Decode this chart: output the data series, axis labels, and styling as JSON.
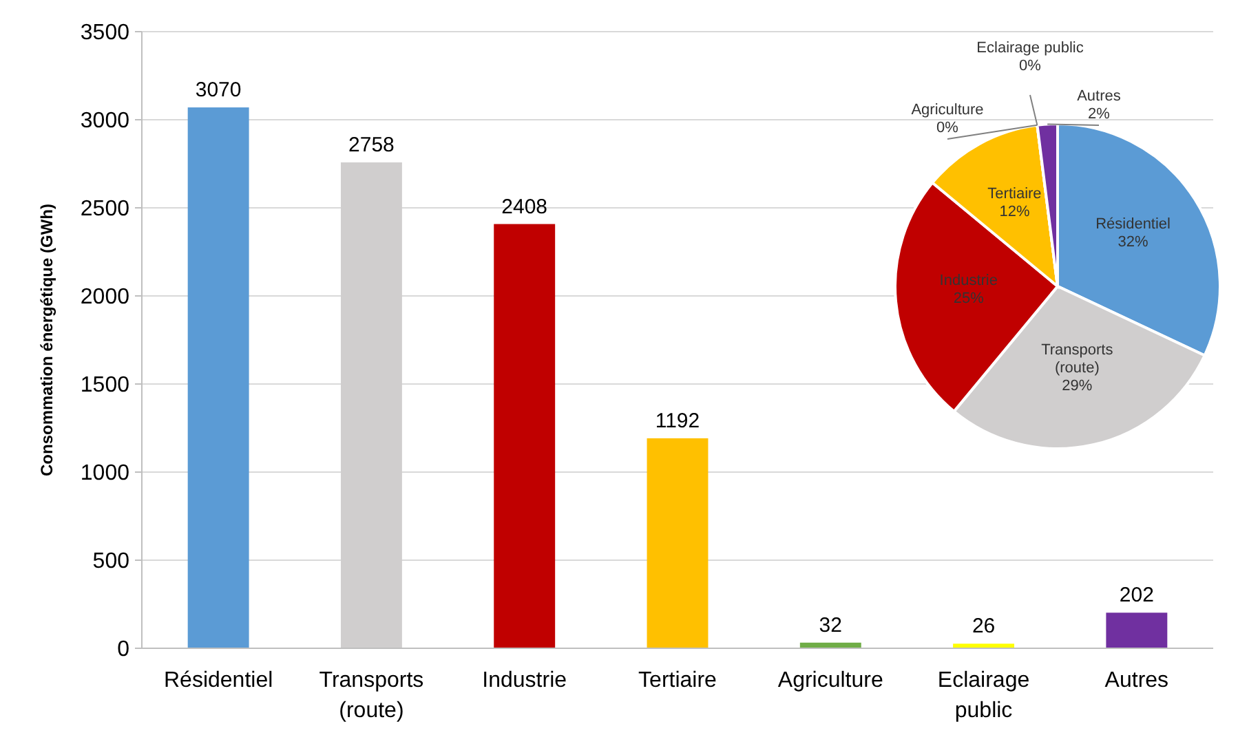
{
  "chart_data": [
    {
      "type": "bar",
      "ylabel": "Consommation énergétique (GWh)",
      "categories": [
        "Résidentiel",
        "Transports (route)",
        "Industrie",
        "Tertiaire",
        "Agriculture",
        "Eclairage public",
        "Autres"
      ],
      "values": [
        3070,
        2758,
        2408,
        1192,
        32,
        26,
        202
      ],
      "colors": [
        "#5b9bd5",
        "#d0cece",
        "#c00000",
        "#ffc000",
        "#70ad47",
        "#ffff00",
        "#7030a0"
      ],
      "ylim": [
        0,
        3500
      ],
      "yticks": [
        0,
        500,
        1000,
        1500,
        2000,
        2500,
        3000,
        3500
      ],
      "grid": "y",
      "data_labels": true
    },
    {
      "type": "pie",
      "categories": [
        "Résidentiel",
        "Transports (route)",
        "Industrie",
        "Tertiaire",
        "Agriculture",
        "Eclairage public",
        "Autres"
      ],
      "values": [
        32,
        29,
        25,
        12,
        0,
        0,
        2
      ],
      "colors": [
        "#5b9bd5",
        "#d0cece",
        "#c00000",
        "#ffc000",
        "#70ad47",
        "#ffff00",
        "#7030a0"
      ],
      "value_labels": [
        "32%",
        "29%",
        "25%",
        "12%",
        "0%",
        "0%",
        "2%"
      ]
    }
  ]
}
